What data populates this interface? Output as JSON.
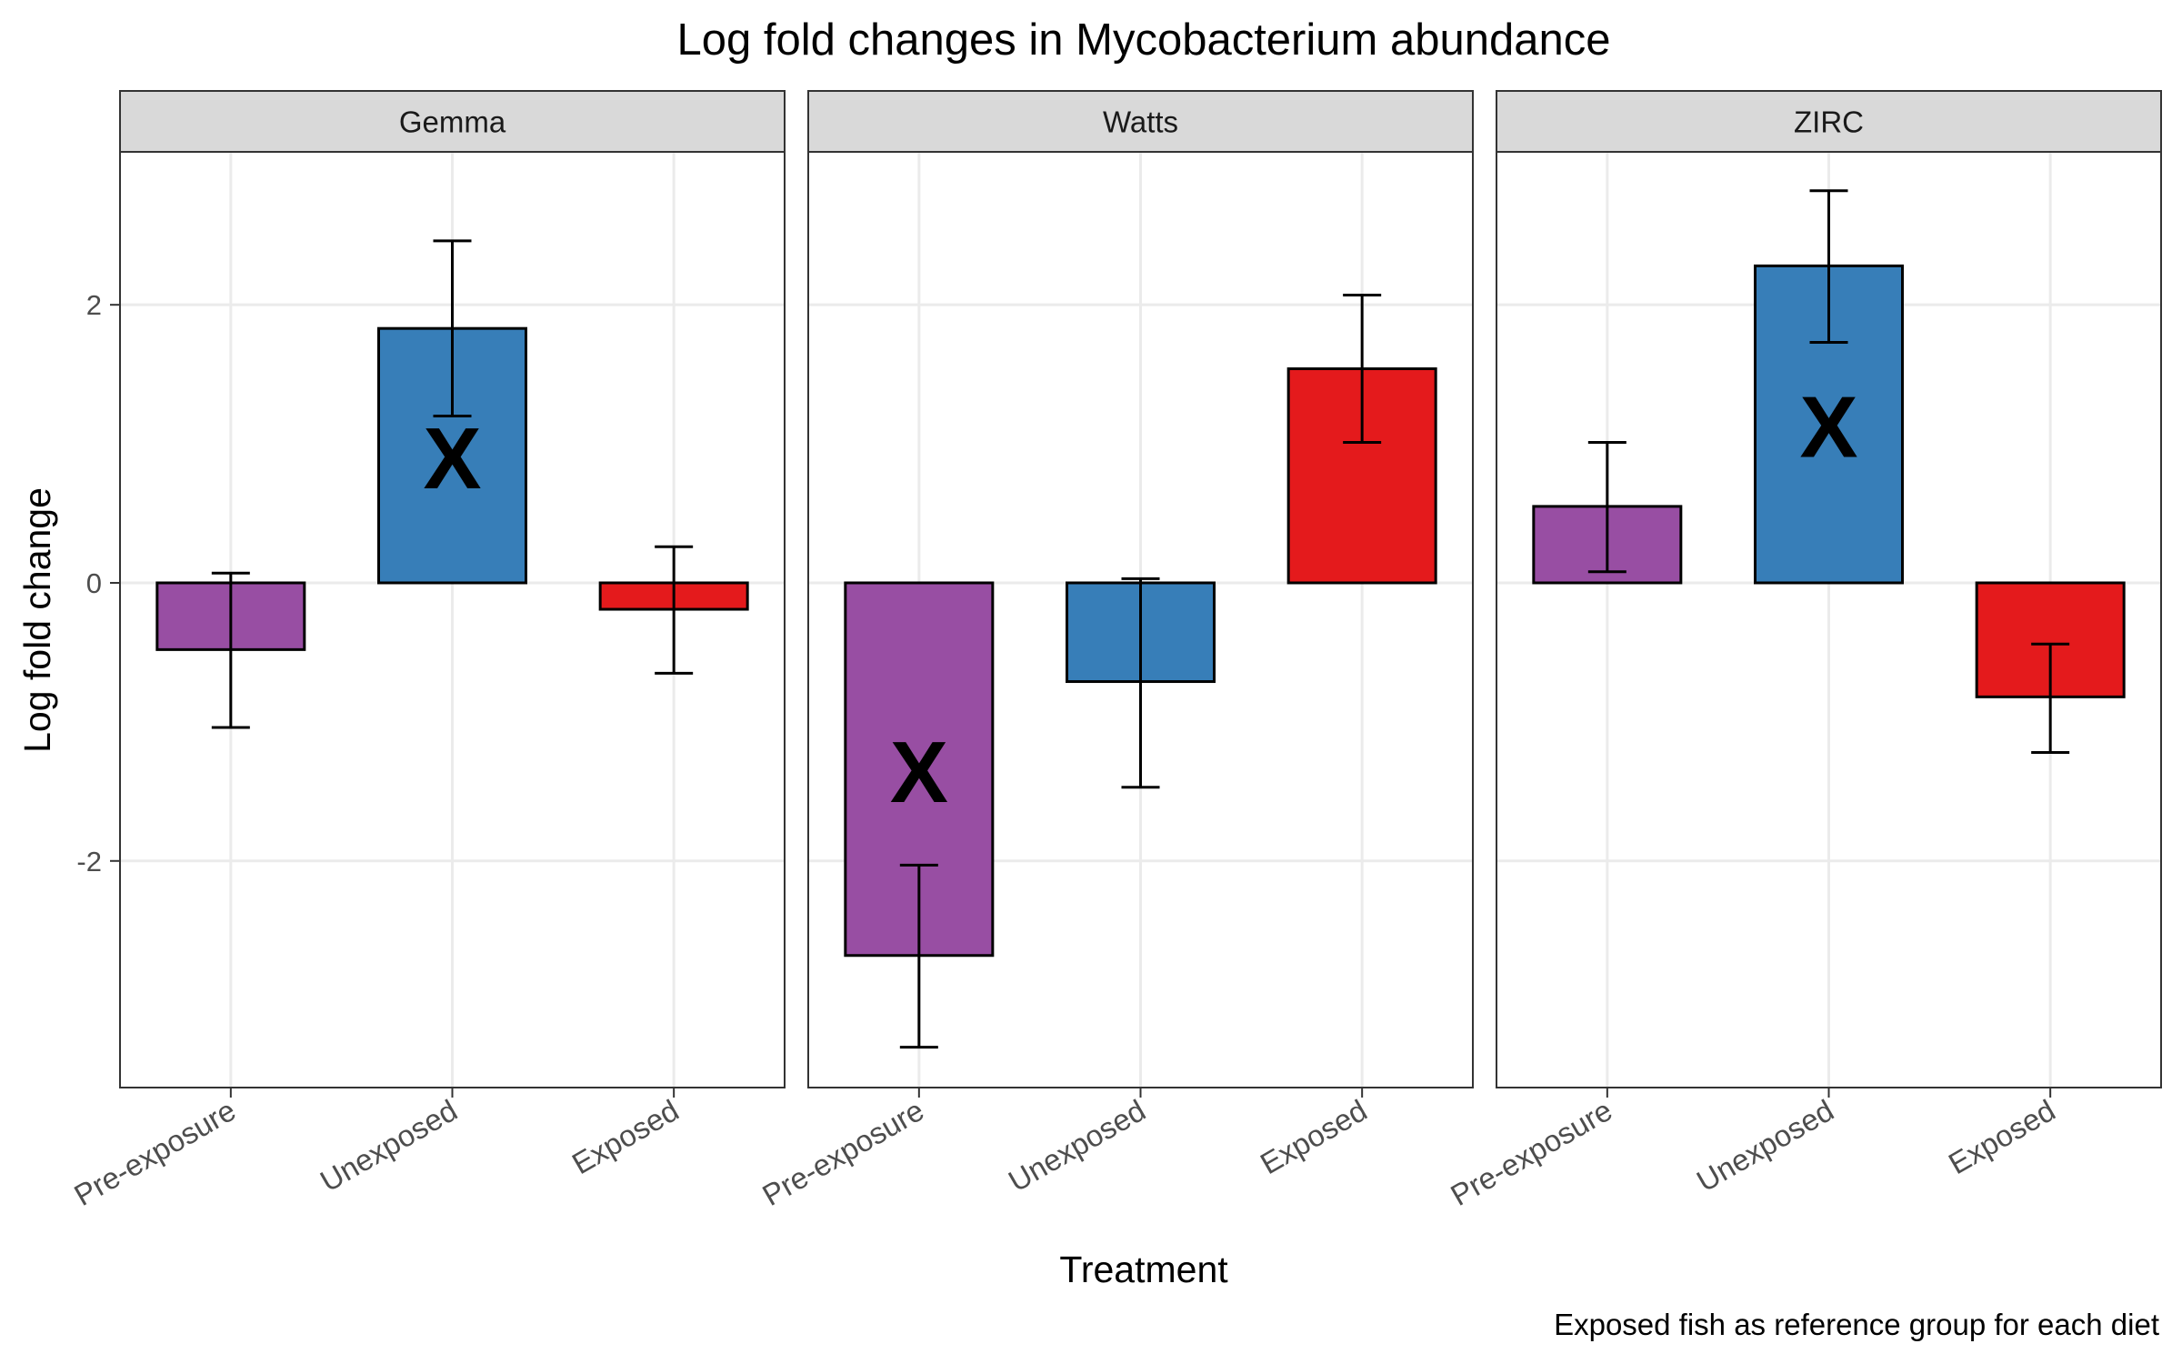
{
  "chart_data": {
    "type": "bar",
    "title": "Log fold changes in Mycobacterium abundance",
    "xlabel": "Treatment",
    "ylabel": "Log fold change",
    "caption": "Exposed fish as reference group for each diet",
    "ylim": [
      -3.63,
      3.1
    ],
    "yticks": [
      -2,
      0,
      2
    ],
    "ytick_labels": [
      "-2",
      "0",
      "2"
    ],
    "grid": true,
    "categories": [
      "Pre-exposure",
      "Unexposed",
      "Exposed"
    ],
    "colors": {
      "Pre-exposure": "#984EA3",
      "Unexposed": "#377EB8",
      "Exposed": "#E41A1C"
    },
    "significance_marker": "X",
    "panels": [
      {
        "name": "Gemma",
        "values": [
          -0.48,
          1.83,
          -0.19
        ],
        "error_low": [
          -1.04,
          1.2,
          -0.65
        ],
        "error_high": [
          0.07,
          2.46,
          0.26
        ],
        "significant": [
          false,
          true,
          false
        ]
      },
      {
        "name": "Watts",
        "values": [
          -2.68,
          -0.71,
          1.54
        ],
        "error_low": [
          -3.34,
          -1.47,
          1.01
        ],
        "error_high": [
          -2.03,
          0.03,
          2.07
        ],
        "significant": [
          true,
          false,
          false
        ]
      },
      {
        "name": "ZIRC",
        "values": [
          0.55,
          2.28,
          -0.82
        ],
        "error_low": [
          0.08,
          1.73,
          -1.22
        ],
        "error_high": [
          1.01,
          2.82,
          -0.44
        ],
        "significant": [
          false,
          true,
          false
        ]
      }
    ]
  }
}
